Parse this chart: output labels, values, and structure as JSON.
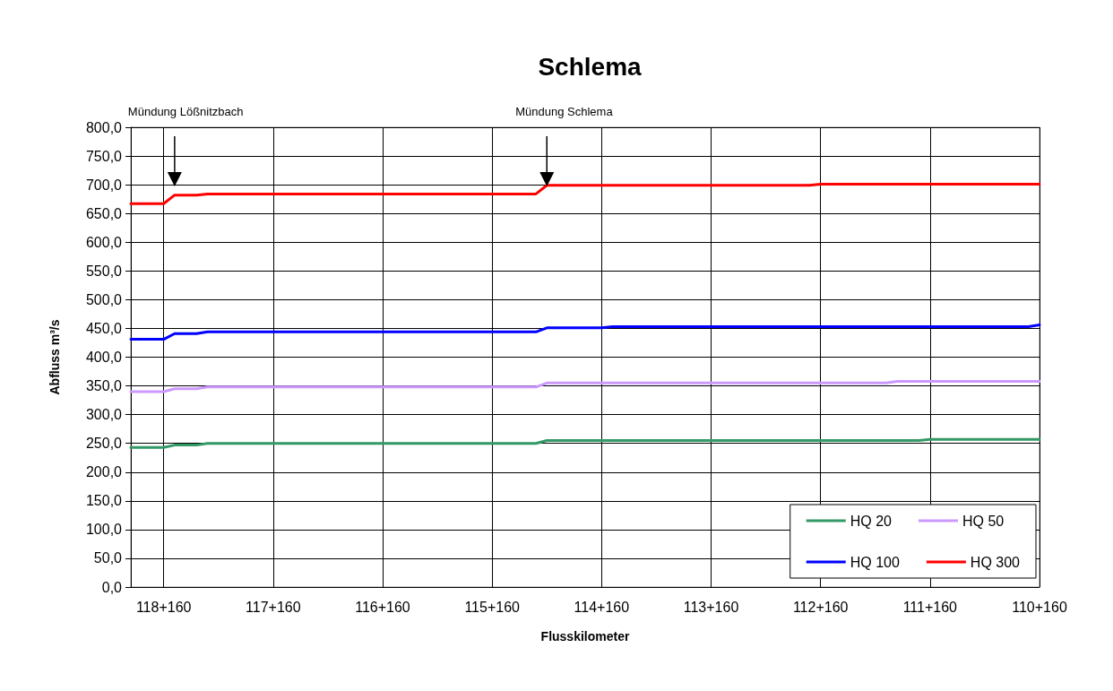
{
  "chart_data": {
    "type": "line",
    "title": "Schlema",
    "xlabel": "Flusskilometer",
    "ylabel": "Abfluss m³/s",
    "categories": [
      null,
      null,
      null,
      "118+160",
      null,
      null,
      null,
      null,
      null,
      null,
      null,
      null,
      null,
      "117+160",
      null,
      null,
      null,
      null,
      null,
      null,
      null,
      null,
      null,
      "116+160",
      null,
      null,
      null,
      null,
      null,
      null,
      null,
      null,
      null,
      "115+160",
      null,
      null,
      null,
      null,
      null,
      null,
      null,
      null,
      null,
      "114+160",
      null,
      null,
      null,
      null,
      null,
      null,
      null,
      null,
      null,
      "113+160",
      null,
      null,
      null,
      null,
      null,
      null,
      null,
      null,
      null,
      "112+160",
      null,
      null,
      null,
      null,
      null,
      null,
      null,
      null,
      null,
      "111+160",
      null,
      null,
      null,
      null,
      null,
      null,
      null,
      null,
      null,
      "110+160"
    ],
    "ylim": [
      0,
      800
    ],
    "yticks": [
      {
        "value": 0,
        "label": "0,0"
      },
      {
        "value": 50,
        "label": "50,0"
      },
      {
        "value": 100,
        "label": "100,0"
      },
      {
        "value": 150,
        "label": "150,0"
      },
      {
        "value": 200,
        "label": "200,0"
      },
      {
        "value": 250,
        "label": "250,0"
      },
      {
        "value": 300,
        "label": "300,0"
      },
      {
        "value": 350,
        "label": "350,0"
      },
      {
        "value": 400,
        "label": "400,0"
      },
      {
        "value": 450,
        "label": "450,0"
      },
      {
        "value": 500,
        "label": "500,0"
      },
      {
        "value": 550,
        "label": "550,0"
      },
      {
        "value": 600,
        "label": "600,0"
      },
      {
        "value": 650,
        "label": "650,0"
      },
      {
        "value": 700,
        "label": "700,0"
      },
      {
        "value": 750,
        "label": "750,0"
      },
      {
        "value": 800,
        "label": "800,0"
      }
    ],
    "grid": true,
    "legend": "bottom right",
    "marker": "none",
    "line_style": "solid",
    "annotations": [
      "Mündung Lößnitzbach",
      "Mündung Schlema"
    ],
    "series": [
      {
        "name": "HQ 20",
        "color": "#339966",
        "values": [
          243,
          243,
          243,
          243,
          247,
          247,
          247,
          250,
          250,
          250,
          250,
          250,
          250,
          250,
          250,
          250,
          250,
          250,
          250,
          250,
          250,
          250,
          250,
          250,
          250,
          250,
          250,
          250,
          250,
          250,
          250,
          250,
          250,
          250,
          250,
          250,
          250,
          250,
          255,
          255,
          255,
          255,
          255,
          255,
          255,
          255,
          255,
          255,
          255,
          255,
          255,
          255,
          255,
          255,
          255,
          255,
          255,
          255,
          255,
          255,
          255,
          255,
          255,
          255,
          255,
          255,
          255,
          255,
          255,
          255,
          255,
          255,
          255,
          257,
          257,
          257,
          257,
          257,
          257,
          257,
          257,
          257,
          257,
          257
        ]
      },
      {
        "name": "HQ 50",
        "color": "#cc99ff",
        "values": [
          340,
          340,
          340,
          340,
          345,
          345,
          345,
          348,
          348,
          348,
          348,
          348,
          348,
          348,
          348,
          348,
          348,
          348,
          348,
          348,
          348,
          348,
          348,
          348,
          348,
          348,
          348,
          348,
          348,
          348,
          348,
          348,
          348,
          348,
          348,
          348,
          348,
          348,
          355,
          355,
          355,
          355,
          355,
          355,
          355,
          355,
          355,
          355,
          355,
          355,
          355,
          355,
          355,
          355,
          355,
          355,
          355,
          355,
          355,
          355,
          355,
          355,
          355,
          355,
          355,
          355,
          355,
          355,
          355,
          355,
          358,
          358,
          358,
          358,
          358,
          358,
          358,
          358,
          358,
          358,
          358,
          358,
          358,
          358
        ]
      },
      {
        "name": "HQ 100",
        "color": "#0000ff",
        "values": [
          431,
          431,
          431,
          431,
          441,
          441,
          441,
          444,
          444,
          444,
          444,
          444,
          444,
          444,
          444,
          444,
          444,
          444,
          444,
          444,
          444,
          444,
          444,
          444,
          444,
          444,
          444,
          444,
          444,
          444,
          444,
          444,
          444,
          444,
          444,
          444,
          444,
          444,
          451,
          451,
          451,
          451,
          451,
          451,
          453,
          453,
          453,
          453,
          453,
          453,
          453,
          453,
          453,
          453,
          453,
          453,
          453,
          453,
          453,
          453,
          453,
          453,
          453,
          453,
          453,
          453,
          453,
          453,
          453,
          453,
          453,
          453,
          453,
          453,
          453,
          453,
          453,
          453,
          453,
          453,
          453,
          453,
          453,
          456
        ]
      },
      {
        "name": "HQ 300",
        "color": "#ff0000",
        "values": [
          667,
          667,
          667,
          667,
          682,
          682,
          682,
          684,
          684,
          684,
          684,
          684,
          684,
          684,
          684,
          684,
          684,
          684,
          684,
          684,
          684,
          684,
          684,
          684,
          684,
          684,
          684,
          684,
          684,
          684,
          684,
          684,
          684,
          684,
          684,
          684,
          684,
          684,
          699,
          699,
          699,
          699,
          699,
          699,
          699,
          699,
          699,
          699,
          699,
          699,
          699,
          699,
          699,
          699,
          699,
          699,
          699,
          699,
          699,
          699,
          699,
          699,
          699,
          701,
          701,
          701,
          701,
          701,
          701,
          701,
          701,
          701,
          701,
          701,
          701,
          701,
          701,
          701,
          701,
          701,
          701,
          701,
          701,
          701
        ]
      }
    ]
  }
}
